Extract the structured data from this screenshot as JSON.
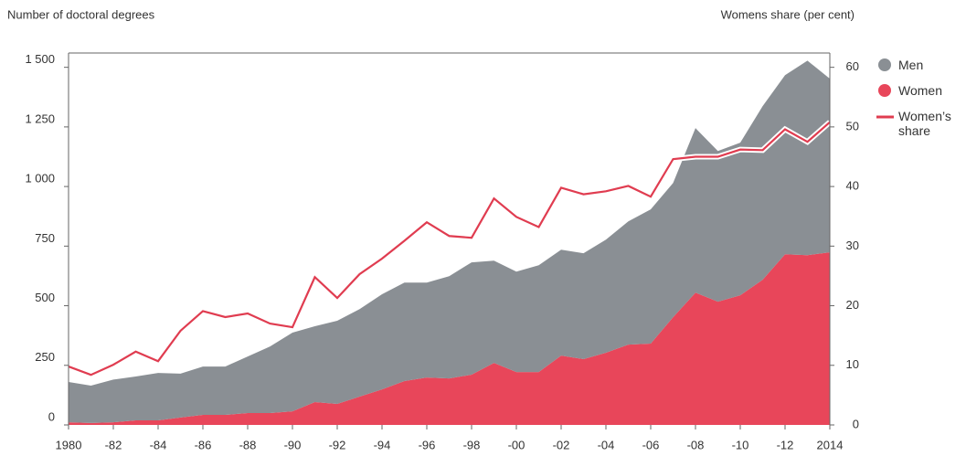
{
  "chart_data": {
    "type": "stacked_area_line",
    "y_label": "Number of doctoral degrees",
    "y2_label": "Womens share (per cent)",
    "categories": [
      "1980",
      null,
      "-82",
      null,
      "-84",
      null,
      "-86",
      null,
      "-88",
      null,
      "-90",
      null,
      "-92",
      null,
      "-94",
      null,
      "-96",
      null,
      "-98",
      null,
      "-00",
      null,
      "-02",
      null,
      "-04",
      null,
      "-06",
      null,
      "-08",
      null,
      "-10",
      null,
      "-12",
      null,
      "2014"
    ],
    "series": [
      {
        "name": "Women",
        "color": "#e8465a",
        "values": [
          11,
          8,
          11,
          19,
          19,
          31,
          42,
          42,
          50,
          50,
          57,
          96,
          88,
          119,
          149,
          184,
          199,
          195,
          211,
          260,
          222,
          222,
          291,
          276,
          303,
          337,
          341,
          452,
          555,
          517,
          544,
          609,
          716,
          712,
          724
        ]
      },
      {
        "name": "Men",
        "color": "#8a8f94",
        "values": [
          169,
          157,
          179,
          184,
          199,
          184,
          203,
          203,
          237,
          279,
          330,
          318,
          349,
          367,
          399,
          413,
          398,
          429,
          471,
          429,
          421,
          448,
          444,
          444,
          474,
          517,
          563,
          563,
          690,
          632,
          640,
          728,
          751,
          816,
          728
        ]
      },
      {
        "name": "Women’s share",
        "color": "#e03c50",
        "axis": "y2",
        "values": [
          9.8,
          8.4,
          10.1,
          12.3,
          10.7,
          15.8,
          19.1,
          18.1,
          18.7,
          17,
          16.4,
          24.8,
          21.3,
          25.3,
          27.9,
          30.9,
          34,
          31.7,
          31.4,
          38,
          34.9,
          33.2,
          39.8,
          38.7,
          39.2,
          40.1,
          38.3,
          44.6,
          45,
          45,
          46.2,
          46.1,
          49.6,
          47.5,
          50.8
        ]
      }
    ],
    "ylim": [
      0,
      1560
    ],
    "yticks": [
      0,
      250,
      500,
      750,
      {
        "value": 1000,
        "label": "1 000"
      },
      {
        "value": 1250,
        "label": "1 250"
      },
      {
        "value": 1500,
        "label": "1 500"
      }
    ],
    "y2lim": [
      0,
      62.4
    ],
    "y2ticks": [
      0,
      10,
      20,
      30,
      40,
      50,
      60
    ]
  }
}
